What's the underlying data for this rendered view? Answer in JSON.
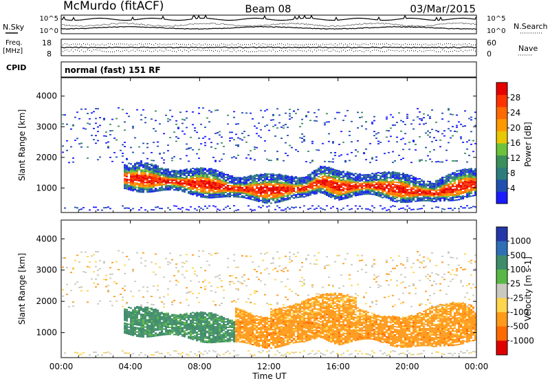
{
  "header": {
    "title_left": "McMurdo (fitACF)",
    "title_center": "Beam 08",
    "title_right": "03/Mar/2015"
  },
  "status_panels": {
    "nsky_label": "N.Sky",
    "nsky_ticks": [
      "10^5",
      "10^0"
    ],
    "nsearch_label": "N.Search",
    "nsearch_ticks": [
      "10^5",
      "10^0"
    ],
    "freq_label": "Freq.",
    "freq_unit": "[MHz]",
    "freq_ticks": [
      "18",
      "8"
    ],
    "nave_label": "Nave",
    "nave_ticks": [
      "60",
      "0"
    ],
    "cpid_label": "CPID",
    "cpid_text": "normal (fast) 151 RF"
  },
  "colors": {
    "power_scale": [
      "#1a1aff",
      "#1f4fb0",
      "#2e7d7d",
      "#3a8f5a",
      "#6cc23a",
      "#e8c800",
      "#ff9900",
      "#ff6a00",
      "#ff3300",
      "#e60000"
    ],
    "velocity_scale": [
      "#2437a8",
      "#2f6fb8",
      "#3f8c6a",
      "#59b845",
      "#c9c9c0",
      "#ffd54d",
      "#ff9a1a",
      "#ff6a00",
      "#e00000"
    ],
    "ground_scatter": "#c0c0c0"
  },
  "chart_data": [
    {
      "type": "heatmap",
      "panel": "power",
      "ylabel": "Slant Range [km]",
      "yticks": [
        "1000",
        "2000",
        "3000",
        "4000"
      ],
      "ylim": [
        200,
        4600
      ],
      "xlim": [
        0,
        24
      ],
      "colorbar": {
        "label": "Power [dB]",
        "ticks": [
          "4",
          "8",
          "12",
          "16",
          "20",
          "24",
          "28"
        ],
        "range": [
          0,
          32
        ]
      },
      "band_center_km": [
        [
          3.5,
          1300
        ],
        [
          5,
          1250
        ],
        [
          7,
          1150
        ],
        [
          9,
          1050
        ],
        [
          10,
          950
        ],
        [
          12,
          900
        ],
        [
          14,
          950
        ],
        [
          15,
          1200
        ],
        [
          16,
          1000
        ],
        [
          18,
          1050
        ],
        [
          20,
          900
        ],
        [
          21.5,
          800
        ],
        [
          23.5,
          1100
        ]
      ],
      "scatter_range_km": [
        1800,
        3600
      ]
    },
    {
      "type": "heatmap",
      "panel": "velocity",
      "ylabel": "Slant Range [km]",
      "yticks": [
        "1000",
        "2000",
        "3000",
        "4000"
      ],
      "ylim": [
        200,
        4600
      ],
      "xlim": [
        0,
        24
      ],
      "xticks": [
        "00:00",
        "04:00",
        "08:00",
        "12:00",
        "16:00",
        "20:00",
        "00:00"
      ],
      "xlabel": "Time UT",
      "colorbar": {
        "label": "Velocity [m s-1]",
        "ticks": [
          "1000",
          "500",
          "100",
          "25",
          "-25",
          "-100",
          "-500",
          "-1000"
        ]
      },
      "regions": [
        {
          "x": [
            3.5,
            10
          ],
          "y_km": [
            800,
            1700
          ],
          "velocity": 250
        },
        {
          "x": [
            10,
            24
          ],
          "y_km": [
            600,
            2000
          ],
          "velocity": -250
        }
      ]
    }
  ],
  "xaxis": {
    "label": "Time UT",
    "ticks": [
      "00:00",
      "04:00",
      "08:00",
      "12:00",
      "16:00",
      "20:00",
      "00:00"
    ]
  }
}
